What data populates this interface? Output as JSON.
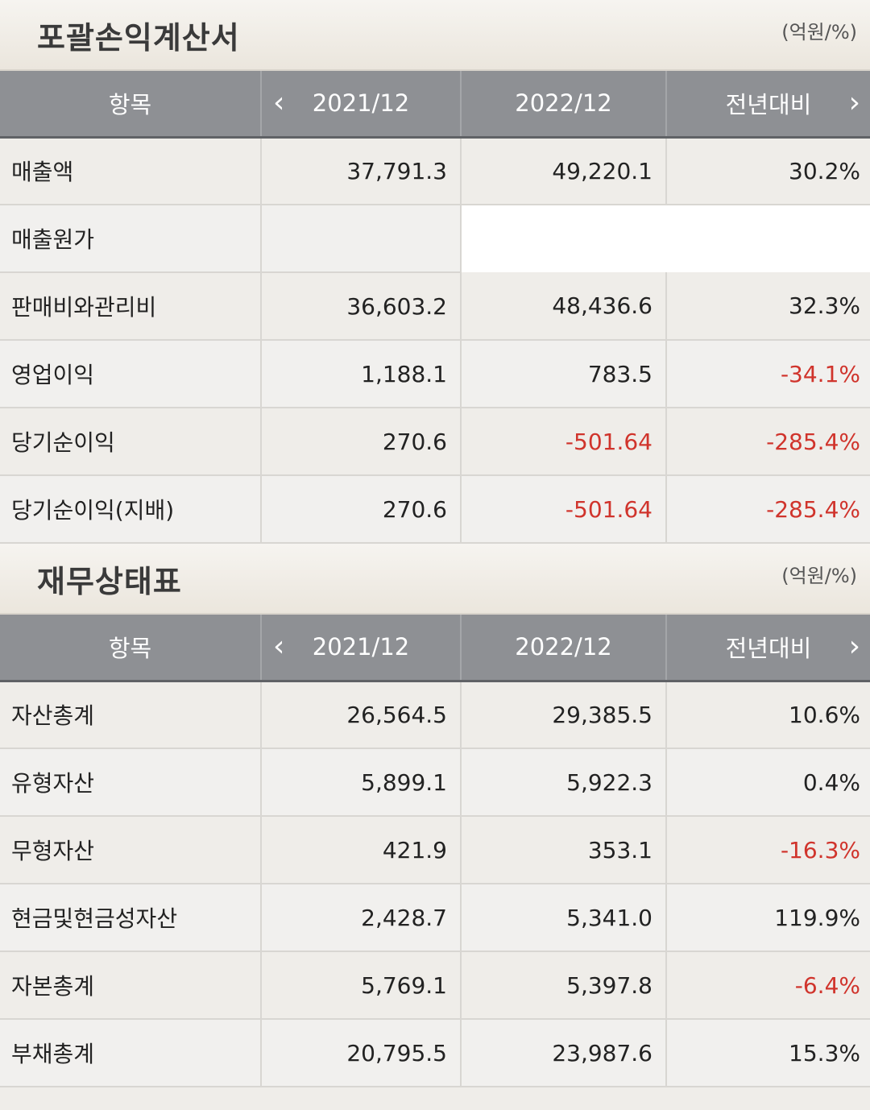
{
  "income": {
    "title": "포괄손익계산서",
    "unit": "(억원/%)",
    "headers": {
      "item": "항목",
      "col1": "2021/12",
      "col2": "2022/12",
      "col3": "전년대비"
    },
    "rows": [
      {
        "label": "매출액",
        "v1": "37,791.3",
        "v2": "49,220.1",
        "v3": "30.2%"
      },
      {
        "label": "매출원가",
        "v1": "",
        "v2": "",
        "v3": ""
      },
      {
        "label": "판매비와관리비",
        "v1": "36,603.2",
        "v2": "48,436.6",
        "v3": "32.3%"
      },
      {
        "label": "영업이익",
        "v1": "1,188.1",
        "v2": "783.5",
        "v3": "-34.1%"
      },
      {
        "label": "당기순이익",
        "v1": "270.6",
        "v2": "-501.64",
        "v3": "-285.4%"
      },
      {
        "label": "당기순이익(지배)",
        "v1": "270.6",
        "v2": "-501.64",
        "v3": "-285.4%"
      }
    ]
  },
  "balance": {
    "title": "재무상태표",
    "unit": "(억원/%)",
    "headers": {
      "item": "항목",
      "col1": "2021/12",
      "col2": "2022/12",
      "col3": "전년대비"
    },
    "rows": [
      {
        "label": "자산총계",
        "v1": "26,564.5",
        "v2": "29,385.5",
        "v3": "10.6%"
      },
      {
        "label": "유형자산",
        "v1": "5,899.1",
        "v2": "5,922.3",
        "v3": "0.4%"
      },
      {
        "label": "무형자산",
        "v1": "421.9",
        "v2": "353.1",
        "v3": "-16.3%"
      },
      {
        "label": "현금및현금성자산",
        "v1": "2,428.7",
        "v2": "5,341.0",
        "v3": "119.9%"
      },
      {
        "label": "자본총계",
        "v1": "5,769.1",
        "v2": "5,397.8",
        "v3": "-6.4%"
      },
      {
        "label": "부채총계",
        "v1": "20,795.5",
        "v2": "23,987.6",
        "v3": "15.3%"
      }
    ]
  },
  "icons": {
    "prev": "chevron-left-icon",
    "next": "chevron-right-icon"
  },
  "colors": {
    "negative": "#d0342c",
    "header_bg": "#8e9094"
  }
}
